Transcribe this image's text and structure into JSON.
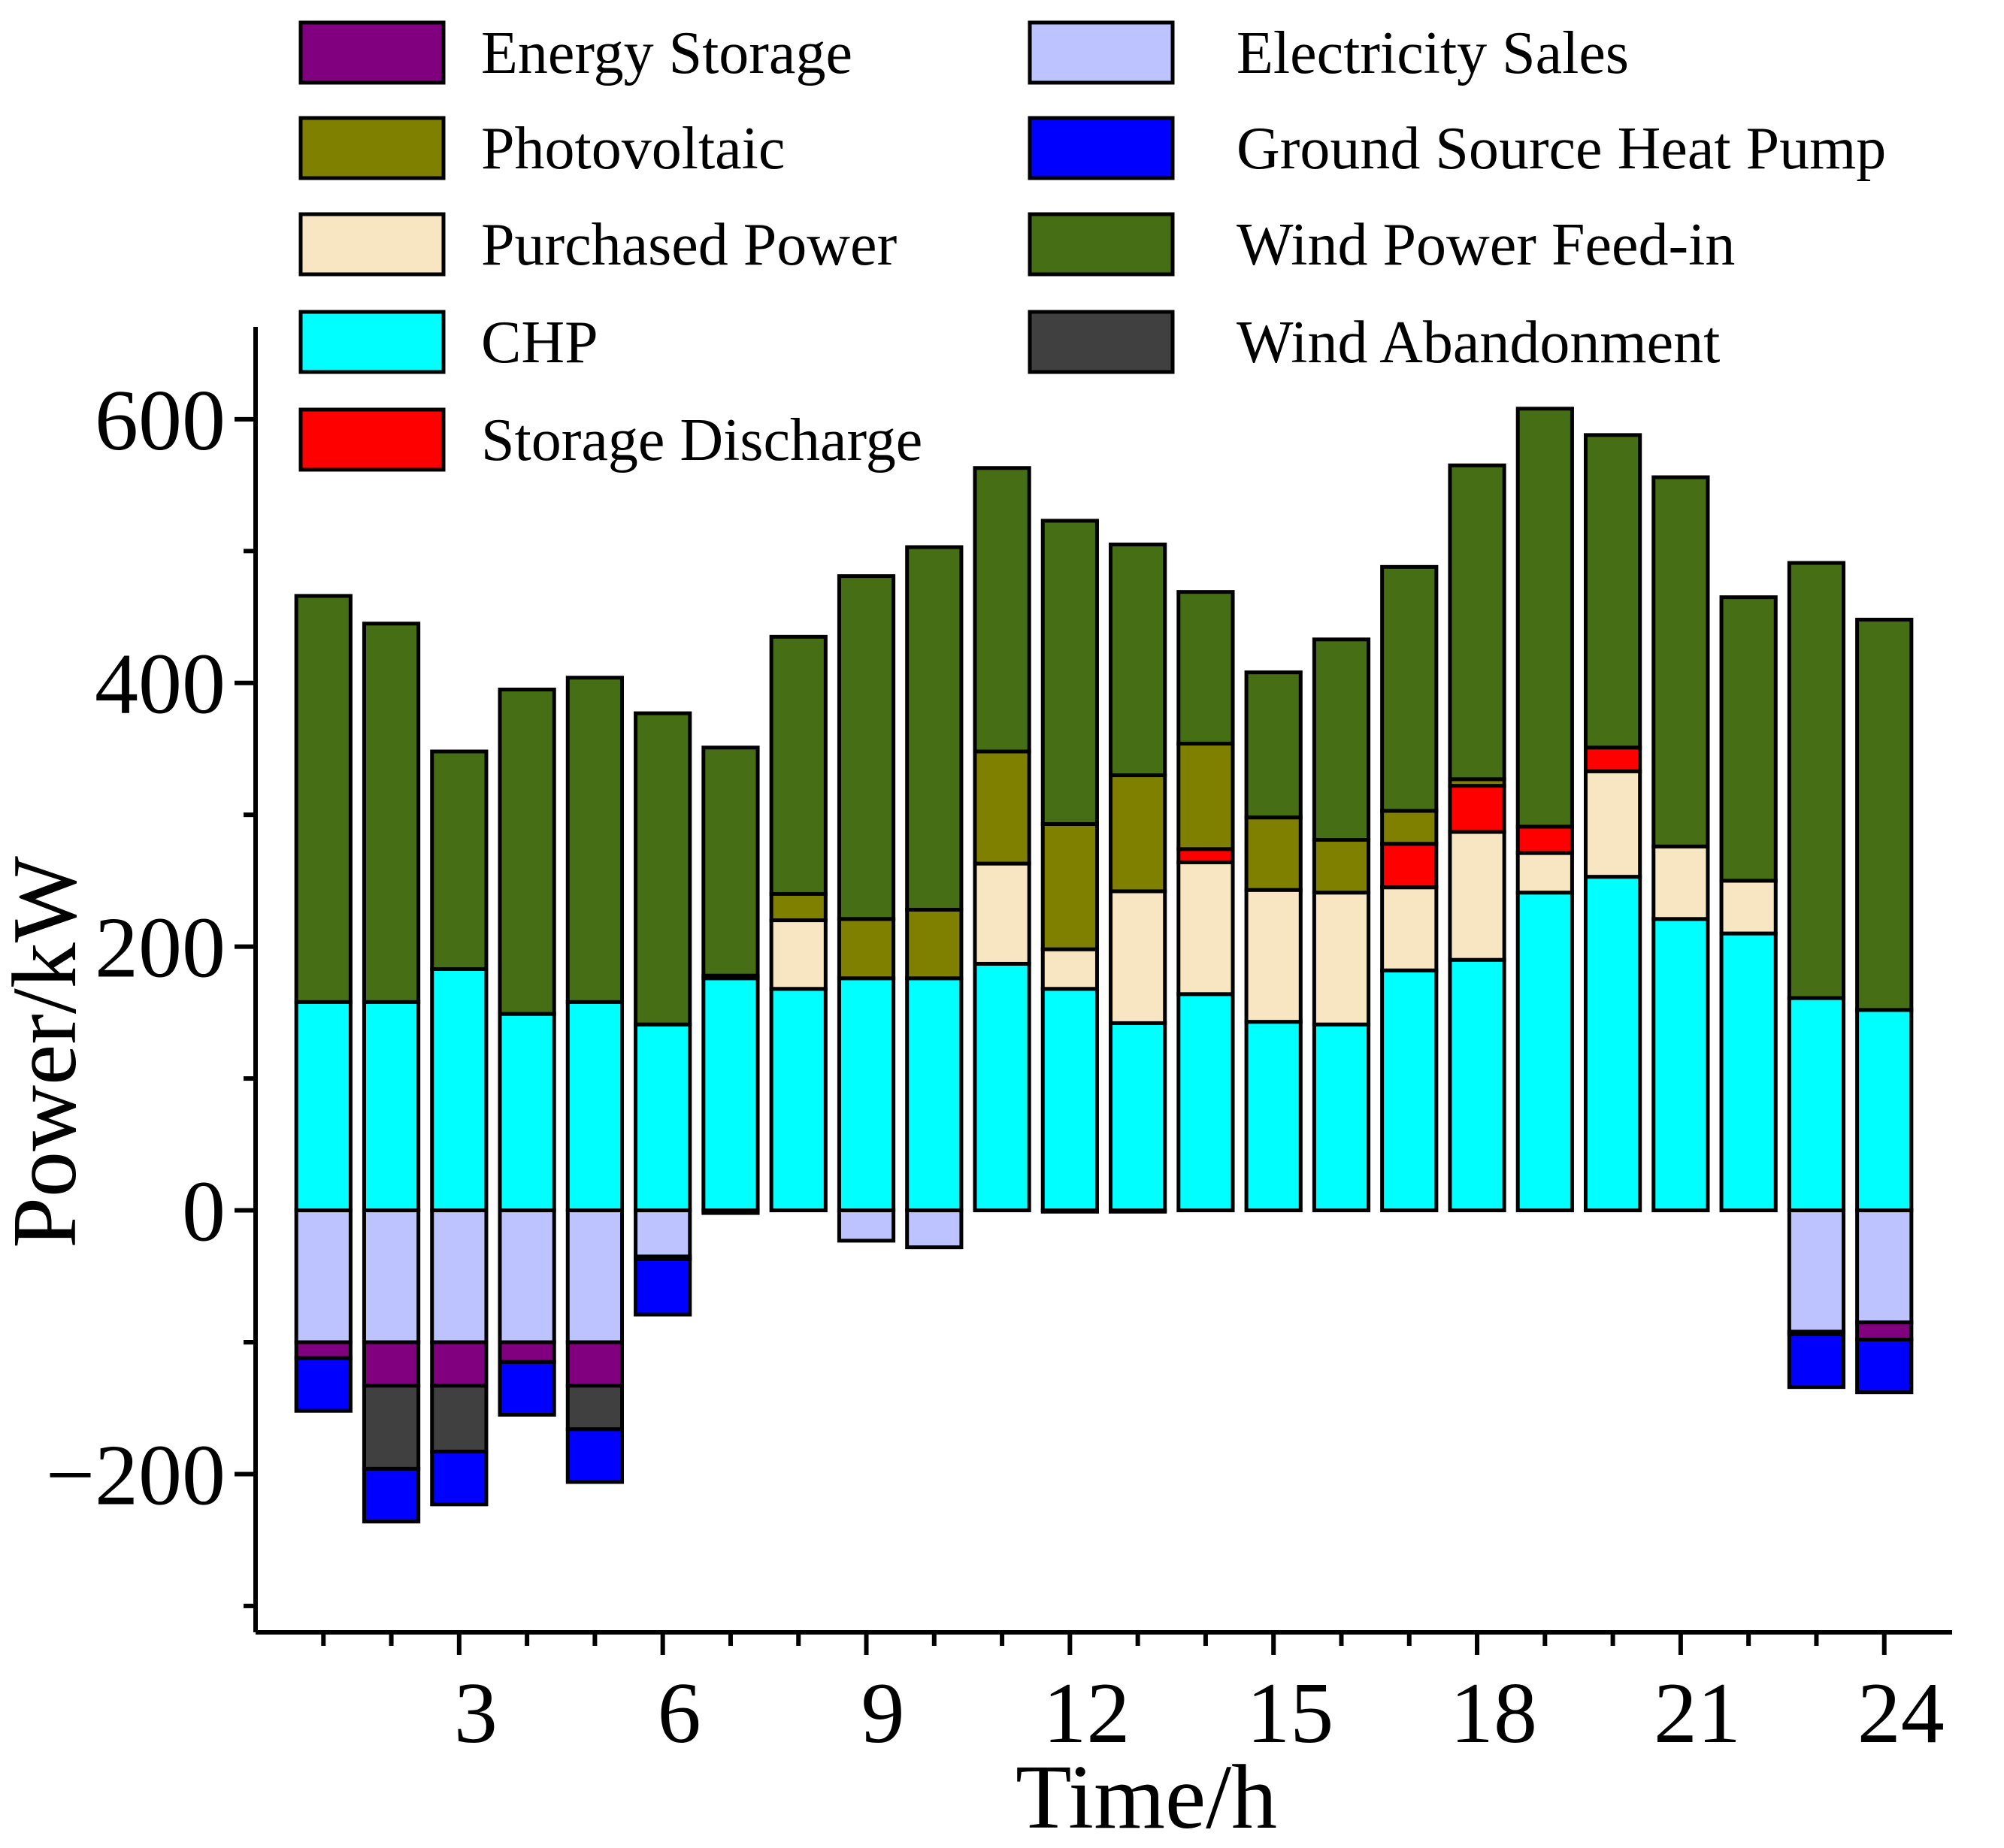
{
  "chart_data": {
    "type": "bar",
    "stacked": true,
    "xlabel": "Time/h",
    "ylabel": "Power/kW",
    "ylim": [
      -320,
      670
    ],
    "xlim": [
      0,
      25
    ],
    "yticks": [
      -200,
      0,
      200,
      400,
      600
    ],
    "xticks": [
      3,
      6,
      9,
      12,
      15,
      18,
      21,
      24
    ],
    "categories": [
      1,
      2,
      3,
      4,
      5,
      6,
      7,
      8,
      9,
      10,
      11,
      12,
      13,
      14,
      15,
      16,
      17,
      18,
      19,
      20,
      21,
      22,
      23,
      24
    ],
    "positive_stack_order": [
      "CHP",
      "Purchased Power",
      "Storage Discharge",
      "Photovoltaic",
      "Wind Power Feed-in"
    ],
    "negative_stack_order": [
      "Electricity Sales",
      "Energy Storage",
      "Wind Abandonment",
      "Ground Source Heat Pump"
    ],
    "series": [
      {
        "name": "Energy Storage",
        "color": "#800080",
        "values": [
          -12,
          -33,
          -33,
          -15,
          -33,
          -2,
          0,
          0,
          0,
          0,
          0,
          0,
          0,
          0,
          0,
          0,
          0,
          0,
          0,
          0,
          0,
          0,
          -2,
          -13
        ]
      },
      {
        "name": "Photovoltaic",
        "color": "#808000",
        "values": [
          0,
          0,
          0,
          0,
          0,
          0,
          0,
          20,
          45,
          52,
          85,
          95,
          88,
          80,
          55,
          40,
          25,
          5,
          0,
          0,
          0,
          0,
          0,
          0
        ]
      },
      {
        "name": "Purchased Power",
        "color": "#F8E6C2",
        "values": [
          0,
          0,
          0,
          0,
          0,
          0,
          2,
          52,
          0,
          0,
          76,
          30,
          100,
          100,
          100,
          100,
          63,
          97,
          30,
          80,
          55,
          40,
          0,
          0
        ]
      },
      {
        "name": "CHP",
        "color": "#00FFFF",
        "values": [
          158,
          158,
          183,
          149,
          158,
          141,
          176,
          168,
          176,
          176,
          187,
          168,
          142,
          164,
          143,
          141,
          182,
          190,
          241,
          253,
          221,
          210,
          161,
          152
        ]
      },
      {
        "name": "Storage Discharge",
        "color": "#FF0000",
        "values": [
          0,
          0,
          0,
          0,
          0,
          0,
          0,
          0,
          0,
          0,
          0,
          0,
          0,
          10,
          0,
          0,
          33,
          35,
          20,
          18,
          0,
          0,
          0,
          0
        ]
      },
      {
        "name": "Electricity Sales",
        "color": "#BDC3FF",
        "values": [
          -100,
          -100,
          -100,
          -100,
          -100,
          -35,
          -2,
          0,
          -23,
          -28,
          0,
          -1,
          -1,
          0,
          0,
          0,
          0,
          0,
          0,
          0,
          0,
          0,
          -92,
          -85
        ]
      },
      {
        "name": "Ground Source Heat Pump",
        "color": "#0000FF",
        "values": [
          -40,
          -40,
          -40,
          -40,
          -40,
          -42,
          0,
          0,
          0,
          0,
          0,
          0,
          0,
          0,
          0,
          0,
          0,
          0,
          0,
          0,
          0,
          0,
          -40,
          -40
        ]
      },
      {
        "name": "Wind Power Feed-in",
        "color": "#466E14",
        "values": [
          308,
          287,
          165,
          246,
          246,
          236,
          173,
          195,
          260,
          275,
          215,
          230,
          175,
          115,
          110,
          152,
          185,
          238,
          317,
          237,
          280,
          215,
          330,
          296
        ]
      },
      {
        "name": "Wind Abandonment",
        "color": "#404040",
        "values": [
          0,
          -63,
          -50,
          0,
          -33,
          0,
          0,
          0,
          0,
          0,
          0,
          0,
          0,
          0,
          0,
          0,
          0,
          0,
          0,
          0,
          0,
          0,
          0,
          0
        ]
      }
    ]
  },
  "legend": {
    "col1": [
      "Energy Storage",
      "Photovoltaic",
      "Purchased Power",
      "CHP",
      "Storage Discharge"
    ],
    "col2": [
      "Electricity Sales",
      "Ground Source Heat Pump",
      "Wind Power Feed-in",
      "Wind Abandonment"
    ]
  }
}
